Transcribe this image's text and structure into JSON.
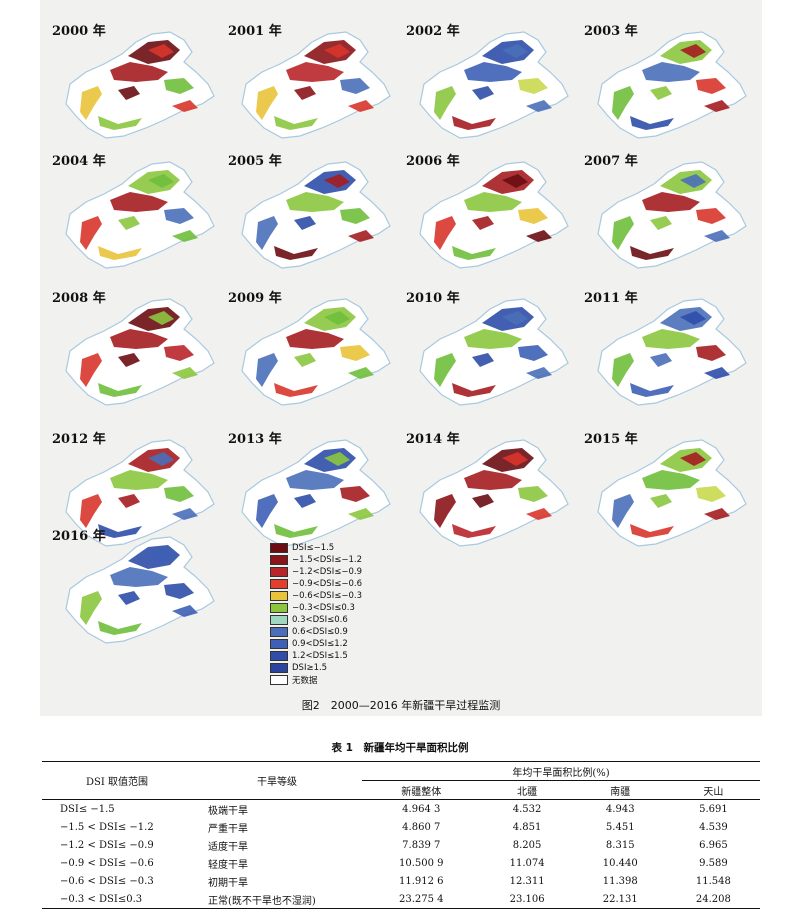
{
  "figure": {
    "maps": [
      {
        "year": "2000 年",
        "palette": [
          "#6b0d12",
          "#a51d21",
          "#d8352c",
          "#e9c33a",
          "#8cc63f",
          "#6fbf3c"
        ]
      },
      {
        "year": "2001 年",
        "palette": [
          "#8b1519",
          "#b8262a",
          "#d8352c",
          "#e9c33a",
          "#8cc63f",
          "#4a6fb8"
        ]
      },
      {
        "year": "2002 年",
        "palette": [
          "#2f4ea8",
          "#3d5fb5",
          "#4a6fb8",
          "#8cc63f",
          "#a51d21",
          "#c9d84e"
        ]
      },
      {
        "year": "2003 年",
        "palette": [
          "#8cc63f",
          "#4a6fb8",
          "#a51d21",
          "#6fbf3c",
          "#2f4ea8",
          "#d8352c"
        ]
      },
      {
        "year": "2004 年",
        "palette": [
          "#8cc63f",
          "#a51d21",
          "#6fbf3c",
          "#d8352c",
          "#e9c33a",
          "#4a6fb8"
        ]
      },
      {
        "year": "2005 年",
        "palette": [
          "#2f4ea8",
          "#8cc63f",
          "#a51d21",
          "#4a6fb8",
          "#6b0d12",
          "#6fbf3c"
        ]
      },
      {
        "year": "2006 年",
        "palette": [
          "#a51d21",
          "#8cc63f",
          "#6b0d12",
          "#d8352c",
          "#6fbf3c",
          "#e9c33a"
        ]
      },
      {
        "year": "2007 年",
        "palette": [
          "#8cc63f",
          "#a51d21",
          "#4a6fb8",
          "#6fbf3c",
          "#6b0d12",
          "#d8352c"
        ]
      },
      {
        "year": "2008 年",
        "palette": [
          "#6b0d12",
          "#a51d21",
          "#8cc63f",
          "#d8352c",
          "#6fbf3c",
          "#b8262a"
        ]
      },
      {
        "year": "2009 年",
        "palette": [
          "#8cc63f",
          "#a51d21",
          "#6fbf3c",
          "#4a6fb8",
          "#d8352c",
          "#e9c33a"
        ]
      },
      {
        "year": "2010 年",
        "palette": [
          "#2f4ea8",
          "#8cc63f",
          "#4a6fb8",
          "#6fbf3c",
          "#a51d21",
          "#3d5fb5"
        ]
      },
      {
        "year": "2011 年",
        "palette": [
          "#4a6fb8",
          "#8cc63f",
          "#2f4ea8",
          "#6fbf3c",
          "#3d5fb5",
          "#a51d21"
        ]
      },
      {
        "year": "2012 年",
        "palette": [
          "#a51d21",
          "#8cc63f",
          "#4a6fb8",
          "#d8352c",
          "#2f4ea8",
          "#6fbf3c"
        ]
      },
      {
        "year": "2013 年",
        "palette": [
          "#2f4ea8",
          "#4a6fb8",
          "#8cc63f",
          "#3d5fb5",
          "#6fbf3c",
          "#a51d21"
        ]
      },
      {
        "year": "2014 年",
        "palette": [
          "#6b0d12",
          "#a51d21",
          "#d8352c",
          "#8b1519",
          "#b8262a",
          "#8cc63f"
        ]
      },
      {
        "year": "2015 年",
        "palette": [
          "#8cc63f",
          "#6fbf3c",
          "#a51d21",
          "#4a6fb8",
          "#d8352c",
          "#c9d84e"
        ]
      },
      {
        "year": "2016 年",
        "palette": [
          "#2f4ea8",
          "#4a6fb8",
          "#3d5fb5",
          "#8cc63f",
          "#6fbf3c",
          "#2f4ea8"
        ]
      }
    ],
    "legend": [
      {
        "label": "DSI≤−1.5",
        "color": "#6b0d12"
      },
      {
        "label": "−1.5<DSI≤−1.2",
        "color": "#8b1519"
      },
      {
        "label": "−1.2<DSI≤−0.9",
        "color": "#b8262a"
      },
      {
        "label": "−0.9<DSI≤−0.6",
        "color": "#e2402c"
      },
      {
        "label": "−0.6<DSI≤−0.3",
        "color": "#e9c33a"
      },
      {
        "label": "−0.3<DSI≤0.3",
        "color": "#8cc63f"
      },
      {
        "label": "0.3<DSI≤0.6",
        "color": "#9fd8c0"
      },
      {
        "label": "0.6<DSI≤0.9",
        "color": "#4a6fb8"
      },
      {
        "label": "0.9<DSI≤1.2",
        "color": "#3d5fb5"
      },
      {
        "label": "1.2<DSI≤1.5",
        "color": "#2f4ea8"
      },
      {
        "label": "DSI≥1.5",
        "color": "#2a45a0"
      },
      {
        "label": "无数据",
        "color": "#ffffff"
      }
    ],
    "caption": "图2　2000—2016 年新疆干旱过程监测",
    "outline_color": "#a9c9de"
  },
  "table": {
    "title": "表 1　新疆年均干旱面积比例",
    "header": {
      "range": "DSI 取值范围",
      "grade": "干旱等级",
      "group": "年均干旱面积比例(%)",
      "cols": [
        "新疆整体",
        "北疆",
        "南疆",
        "天山"
      ]
    },
    "rows": [
      {
        "range": "DSI≤ −1.5",
        "grade": "极端干旱",
        "values": [
          "4.964 3",
          "4.532",
          "4.943",
          "5.691"
        ]
      },
      {
        "range": "−1.5 < DSI≤ −1.2",
        "grade": "严重干旱",
        "values": [
          "4.860 7",
          "4.851",
          "5.451",
          "4.539"
        ]
      },
      {
        "range": "−1.2 < DSI≤ −0.9",
        "grade": "适度干旱",
        "values": [
          "7.839 7",
          "8.205",
          "8.315",
          "6.965"
        ]
      },
      {
        "range": "−0.9 < DSI≤ −0.6",
        "grade": "轻度干旱",
        "values": [
          "10.500 9",
          "11.074",
          "10.440",
          "9.589"
        ]
      },
      {
        "range": "−0.6 < DSI≤ −0.3",
        "grade": "初期干旱",
        "values": [
          "11.912 6",
          "12.311",
          "11.398",
          "11.548"
        ]
      },
      {
        "range": "−0.3 < DSI≤0.3",
        "grade": "正常(既不干旱也不湿润)",
        "values": [
          "23.275 4",
          "23.106",
          "22.131",
          "24.208"
        ]
      }
    ]
  }
}
